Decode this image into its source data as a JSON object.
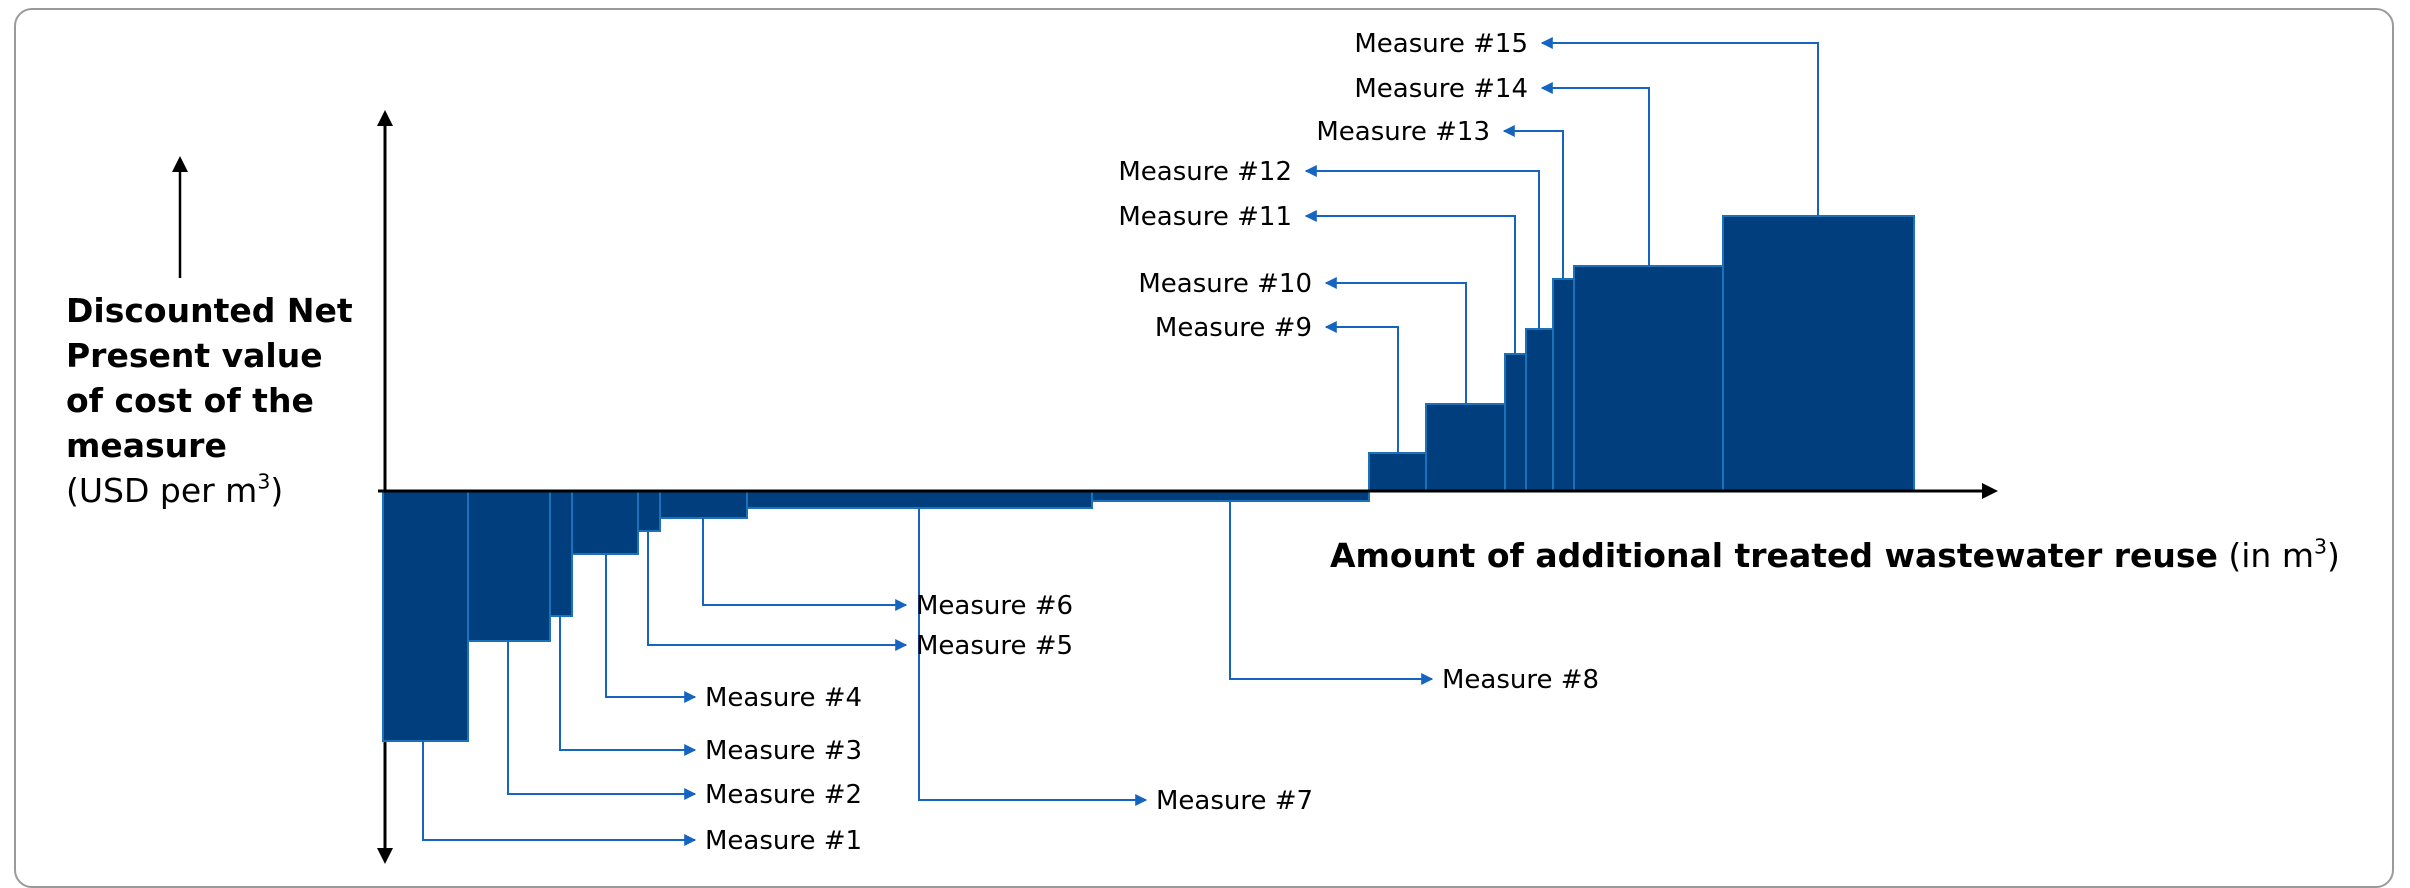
{
  "chart_data": {
    "type": "bar",
    "y_axis_label": {
      "lines": [
        "Discounted Net",
        "Present value",
        "of cost of the",
        "measure"
      ],
      "unit_prefix": "(USD per m",
      "unit_sup": "3",
      "unit_suffix": ")"
    },
    "x_axis_label": {
      "bold": "Amount of additional treated wastewater reuse",
      "unit_prefix": " (in m",
      "unit_sup": "3",
      "unit_suffix": ")"
    },
    "xlim": [
      0,
      1610
    ],
    "ylim": [
      -380,
      380
    ],
    "bar_color": "#003e7e",
    "edge_color": "#1a72b8",
    "leader_color": "#1565c0",
    "measures": [
      {
        "label": "Measure #1",
        "width": 85,
        "value": -250
      },
      {
        "label": "Measure #2",
        "width": 82,
        "value": -150
      },
      {
        "label": "Measure #3",
        "width": 22,
        "value": -125
      },
      {
        "label": "Measure #4",
        "width": 66,
        "value": -63
      },
      {
        "label": "Measure #5",
        "width": 22,
        "value": -40
      },
      {
        "label": "Measure  #6",
        "width": 87,
        "value": -27
      },
      {
        "label": "Measure  #7",
        "width": 345,
        "value": -17
      },
      {
        "label": "Measure #8",
        "width": 277,
        "value": -10
      },
      {
        "label": "Measure #9",
        "width": 57,
        "value": 38
      },
      {
        "label": "Measure #10",
        "width": 79,
        "value": 87
      },
      {
        "label": "Measure #11",
        "width": 21,
        "value": 137
      },
      {
        "label": "Measure #12",
        "width": 27,
        "value": 162
      },
      {
        "label": "Measure #13",
        "width": 21,
        "value": 212
      },
      {
        "label": "Measure #14",
        "width": 149,
        "value": 225
      },
      {
        "label": "Measure #15",
        "width": 191,
        "value": 275
      }
    ]
  }
}
